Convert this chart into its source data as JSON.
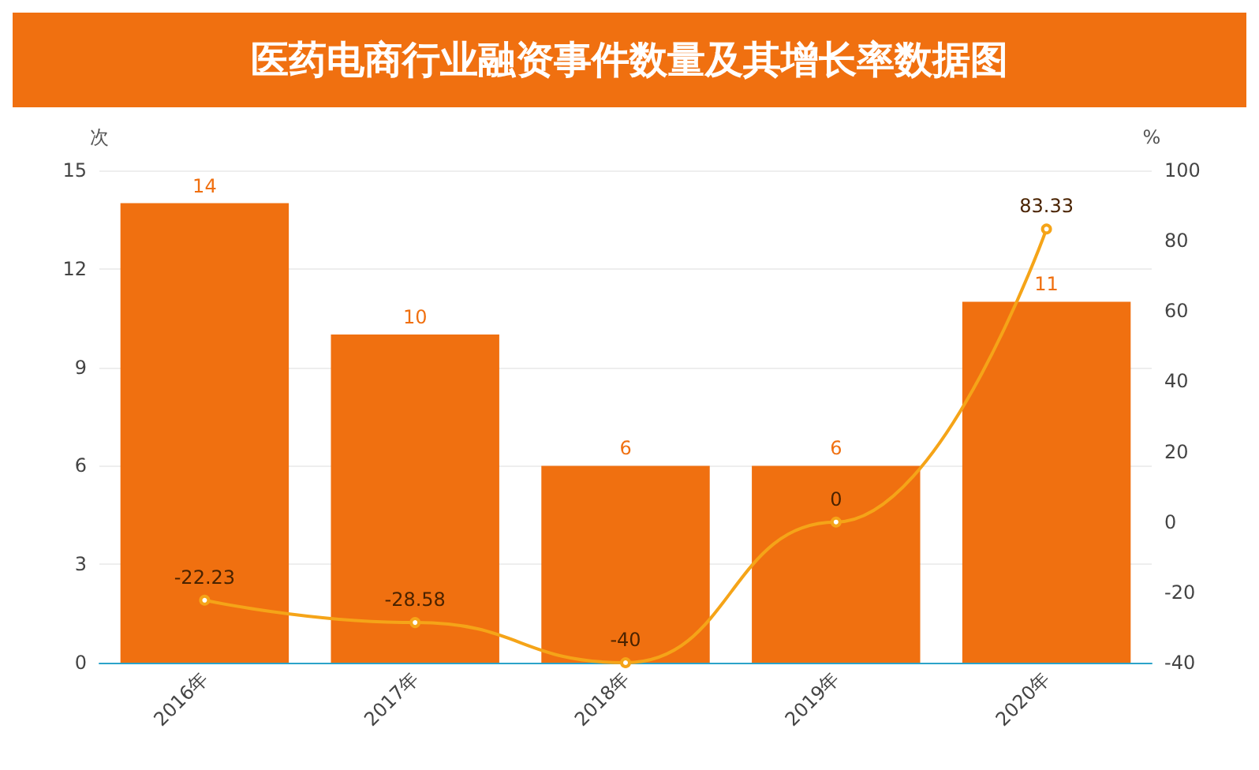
{
  "chart_data": {
    "type": "bar",
    "title": "医药电商行业融资事件数量及其增长率数据图",
    "categories": [
      "2016年",
      "2017年",
      "2018年",
      "2019年",
      "2020年"
    ],
    "series": [
      {
        "color": "#f07010",
        "values": [
          14,
          10,
          6,
          6,
          11
        ]
      },
      {
        "type": "line",
        "axis": "y2",
        "color": "#f5a418",
        "values": [
          -22.23,
          -28.58,
          -40,
          0,
          83.33
        ]
      }
    ],
    "ylabel": "次",
    "y2label": "%",
    "ylim": [
      0,
      15
    ],
    "yticks": [
      0,
      3,
      6,
      9,
      12,
      15
    ],
    "y2lim": [
      -40,
      100
    ],
    "y2ticks": [
      -40,
      -20,
      0,
      20,
      40,
      60,
      80,
      100
    ],
    "grid": "y",
    "data_labels": true,
    "marker": "circle",
    "line_style": "solid"
  }
}
